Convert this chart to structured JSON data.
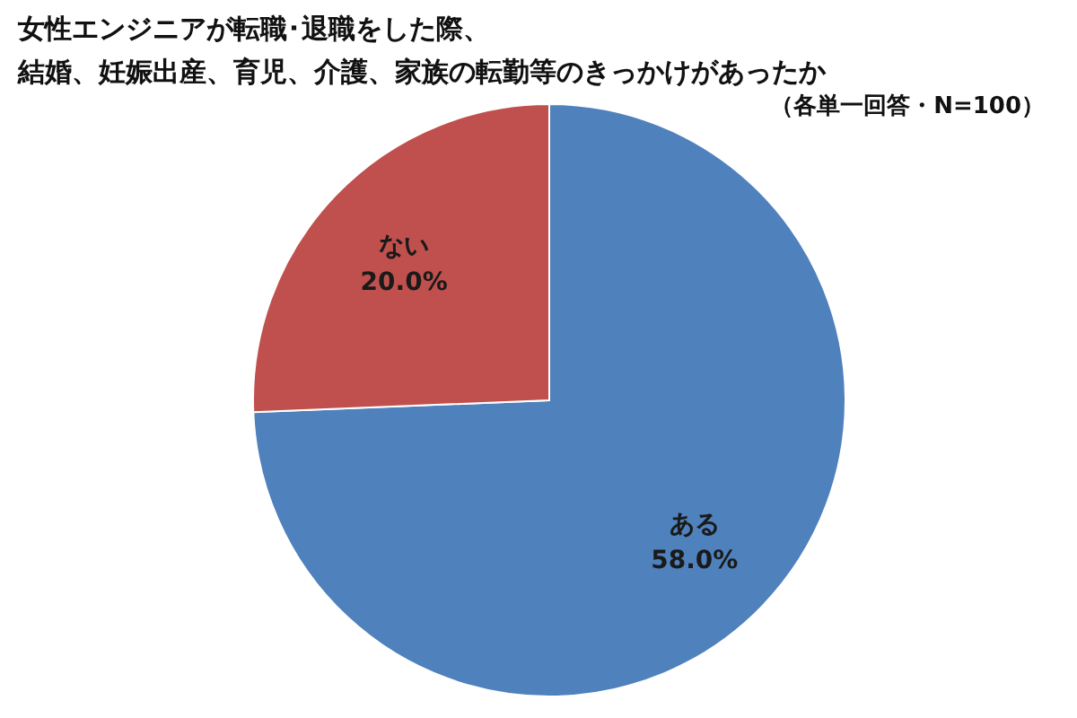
{
  "chart_data": {
    "type": "pie",
    "title": "女性エンジニアが転職･退職をした際、",
    "subtitle": "結婚、妊娠出産、育児、介護、家族の転勤等のきっかけがあったか",
    "annotations": [
      "（各単一回答・N=100）"
    ],
    "categories": [
      "ある",
      "ない"
    ],
    "values": [
      58.0,
      20.0
    ],
    "value_labels": [
      "58.0%",
      "20.0%"
    ],
    "colors": [
      "#4f81bd",
      "#c0504d"
    ]
  }
}
